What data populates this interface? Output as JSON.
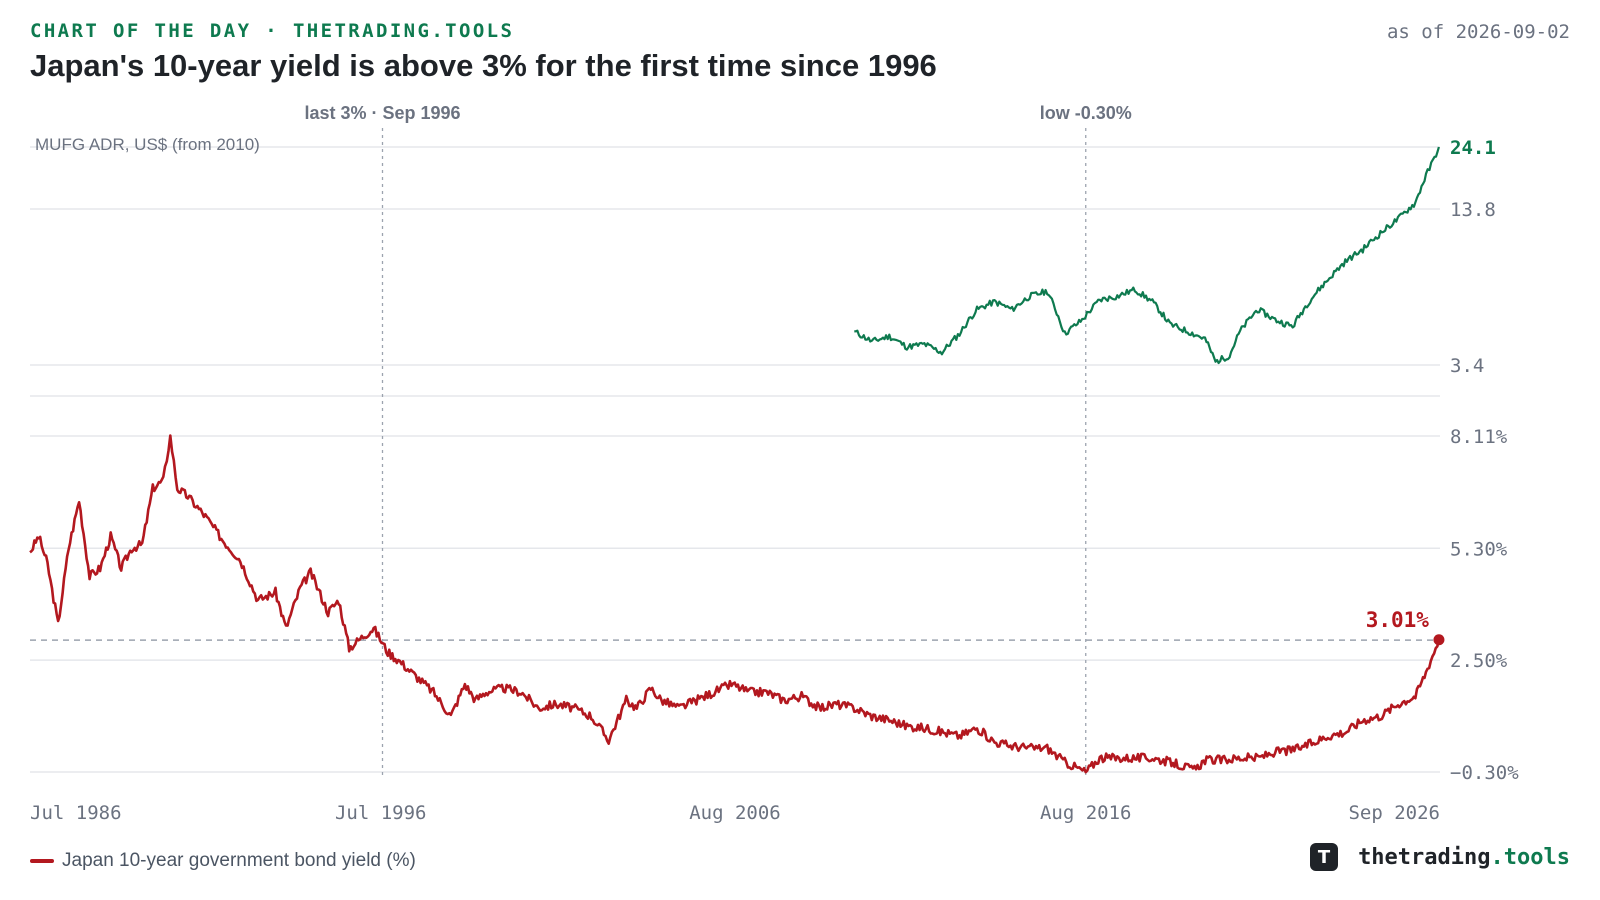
{
  "header": {
    "kicker": "CHART OF THE DAY · THETRADING.TOOLS",
    "as_of": "as of 2026-09-02",
    "title": "Japan's 10-year yield is above 3% for the first time since 1996"
  },
  "legend": {
    "label": "Japan 10-year government bond yield (%)"
  },
  "brand": {
    "name": "thetrading",
    "suffix": ".tools",
    "logo_letter": "T"
  },
  "colors": {
    "jgb": "#b3181f",
    "mufg": "#0e7a4f",
    "grid": "#e5e7eb",
    "muted": "#6b7280"
  },
  "chart_data": {
    "type": "line",
    "x_ticks": [
      "Jul 1986",
      "Jul 1996",
      "Aug 2006",
      "Aug 2016",
      "Sep 2026"
    ],
    "x_range": [
      1986.5,
      2026.7
    ],
    "annotations": [
      {
        "x": 1996.55,
        "label": "last 3% · Sep 1996"
      },
      {
        "x": 2016.6,
        "label": "low -0.30%"
      }
    ],
    "top_panel": {
      "label": "MUFG ADR, US$ (from 2010)",
      "scale": "log",
      "ticks": [
        "24.1",
        "13.8",
        "3.4"
      ],
      "tick_values": [
        24.1,
        13.8,
        3.4
      ],
      "last_value": "24.1",
      "series": {
        "x": [
          2010.0,
          2010.5,
          2011.0,
          2011.5,
          2012.0,
          2012.5,
          2013.0,
          2013.5,
          2014.0,
          2014.5,
          2015.0,
          2015.5,
          2016.0,
          2016.5,
          2017.0,
          2017.5,
          2018.0,
          2018.5,
          2019.0,
          2019.5,
          2020.0,
          2020.3,
          2020.7,
          2021.0,
          2021.5,
          2022.0,
          2022.5,
          2023.0,
          2023.5,
          2024.0,
          2024.5,
          2025.0,
          2025.5,
          2026.0,
          2026.3,
          2026.5,
          2026.67
        ],
        "values": [
          4.6,
          4.2,
          4.4,
          4.0,
          4.1,
          3.8,
          4.5,
          5.6,
          6.0,
          5.6,
          6.3,
          6.6,
          4.5,
          5.1,
          6.1,
          6.3,
          6.7,
          6.0,
          4.9,
          4.6,
          4.3,
          3.5,
          3.7,
          4.6,
          5.6,
          5.1,
          4.8,
          6.1,
          7.3,
          8.6,
          9.6,
          11.1,
          12.6,
          14.6,
          18.6,
          21.2,
          24.1
        ]
      }
    },
    "bottom_panel": {
      "unit": "%",
      "ticks": [
        "8.11%",
        "5.30%",
        "2.50%",
        "−0.30%"
      ],
      "tick_values": [
        8.11,
        5.3,
        2.5,
        -0.3
      ],
      "threshold": 3.0,
      "last_value_label": "3.01%",
      "series": {
        "name": "Japan 10-year government bond yield (%)",
        "x": [
          1986.5,
          1986.75,
          1987.0,
          1987.3,
          1987.6,
          1987.9,
          1988.2,
          1988.5,
          1988.8,
          1989.1,
          1989.4,
          1989.7,
          1990.0,
          1990.3,
          1990.5,
          1990.7,
          1991.0,
          1991.5,
          1992.0,
          1992.5,
          1993.0,
          1993.5,
          1993.8,
          1994.2,
          1994.5,
          1995.0,
          1995.3,
          1995.6,
          1996.0,
          1996.3,
          1996.7,
          1997.0,
          1997.5,
          1998.0,
          1998.5,
          1998.9,
          1999.2,
          1999.5,
          2000.0,
          2000.5,
          2001.0,
          2001.5,
          2002.0,
          2002.5,
          2003.0,
          2003.5,
          2003.8,
          2004.2,
          2004.5,
          2005.0,
          2005.5,
          2006.0,
          2006.5,
          2007.0,
          2007.5,
          2008.0,
          2008.5,
          2009.0,
          2009.5,
          2010.0,
          2010.5,
          2011.0,
          2011.5,
          2012.0,
          2012.5,
          2013.0,
          2013.5,
          2014.0,
          2014.5,
          2015.0,
          2015.5,
          2016.0,
          2016.6,
          2017.0,
          2017.5,
          2018.0,
          2018.5,
          2019.0,
          2019.7,
          2020.0,
          2020.5,
          2021.0,
          2021.5,
          2022.0,
          2022.5,
          2023.0,
          2023.5,
          2024.0,
          2024.5,
          2025.0,
          2025.5,
          2026.0,
          2026.3,
          2026.67
        ],
        "values": [
          5.2,
          5.6,
          4.9,
          3.4,
          5.3,
          6.5,
          4.6,
          4.8,
          5.6,
          4.8,
          5.3,
          5.4,
          6.8,
          7.0,
          8.1,
          6.8,
          6.6,
          6.1,
          5.5,
          5.0,
          4.0,
          4.2,
          3.3,
          4.3,
          4.7,
          3.7,
          4.0,
          2.8,
          3.1,
          3.3,
          2.7,
          2.5,
          2.1,
          1.7,
          1.1,
          1.9,
          1.5,
          1.7,
          1.8,
          1.7,
          1.3,
          1.4,
          1.3,
          1.1,
          0.5,
          1.5,
          1.3,
          1.8,
          1.5,
          1.3,
          1.5,
          1.7,
          1.9,
          1.7,
          1.7,
          1.5,
          1.6,
          1.3,
          1.4,
          1.3,
          1.1,
          1.0,
          0.85,
          0.8,
          0.7,
          0.6,
          0.8,
          0.45,
          0.35,
          0.3,
          0.3,
          -0.05,
          -0.3,
          0.05,
          0.05,
          0.05,
          0.05,
          -0.05,
          -0.25,
          0.0,
          0.0,
          0.05,
          0.05,
          0.2,
          0.25,
          0.4,
          0.6,
          0.7,
          1.0,
          1.1,
          1.4,
          1.6,
          2.2,
          3.01
        ]
      }
    }
  }
}
